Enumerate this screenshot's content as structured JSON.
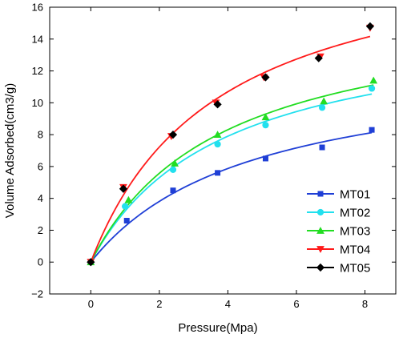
{
  "chart_data": {
    "type": "scatter",
    "title": "",
    "xlabel": "Pressure(Mpa)",
    "ylabel": "Volume Adsorbed(cm3/g)",
    "xlim": [
      -1.2,
      8.9
    ],
    "ylim": [
      -2,
      16
    ],
    "xticks": [
      0,
      2,
      4,
      6,
      8
    ],
    "xtick_labels": [
      "0",
      "2",
      "4",
      "6",
      "8"
    ],
    "yticks": [
      -2,
      0,
      2,
      4,
      6,
      8,
      10,
      12,
      14,
      16
    ],
    "ytick_labels": [
      "−2",
      "0",
      "2",
      "4",
      "6",
      "8",
      "10",
      "12",
      "14",
      "16"
    ],
    "grid": false,
    "legend_position": "lower-right",
    "series": [
      {
        "name": "MT01",
        "color": "#1f3fd6",
        "marker": "square",
        "x": [
          0,
          1.05,
          2.4,
          3.7,
          5.1,
          6.75,
          8.2
        ],
        "y": [
          0,
          2.6,
          4.5,
          5.6,
          6.5,
          7.2,
          8.3
        ],
        "fit": {
          "vmax": 12.8,
          "b": 0.212
        }
      },
      {
        "name": "MT02",
        "color": "#22e0ee",
        "marker": "circle",
        "x": [
          0,
          1.0,
          2.4,
          3.7,
          5.1,
          6.75,
          8.2
        ],
        "y": [
          0,
          3.5,
          5.8,
          7.4,
          8.6,
          9.7,
          10.9
        ],
        "fit": {
          "vmax": 15.5,
          "b": 0.26
        }
      },
      {
        "name": "MT03",
        "color": "#22dd22",
        "marker": "triangle-up",
        "x": [
          0,
          1.1,
          2.45,
          3.7,
          5.1,
          6.8,
          8.25
        ],
        "y": [
          0,
          3.9,
          6.2,
          8.0,
          9.1,
          10.1,
          11.4
        ],
        "fit": {
          "vmax": 16.3,
          "b": 0.26
        }
      },
      {
        "name": "MT04",
        "color": "#ff1a1a",
        "marker": "triangle-down",
        "x": [
          0,
          0.95,
          2.35,
          3.65,
          5.05,
          6.7,
          8.15
        ],
        "y": [
          0,
          4.7,
          7.9,
          10.0,
          11.6,
          12.9,
          14.7
        ],
        "fit": {
          "vmax": 20.6,
          "b": 0.27
        }
      },
      {
        "name": "MT05",
        "color": "#000000",
        "marker": "diamond",
        "x": [
          0,
          0.95,
          2.4,
          3.7,
          5.1,
          6.65,
          8.15
        ],
        "y": [
          0,
          4.6,
          8.0,
          9.9,
          11.6,
          12.8,
          14.8
        ],
        "fit": null
      }
    ]
  }
}
